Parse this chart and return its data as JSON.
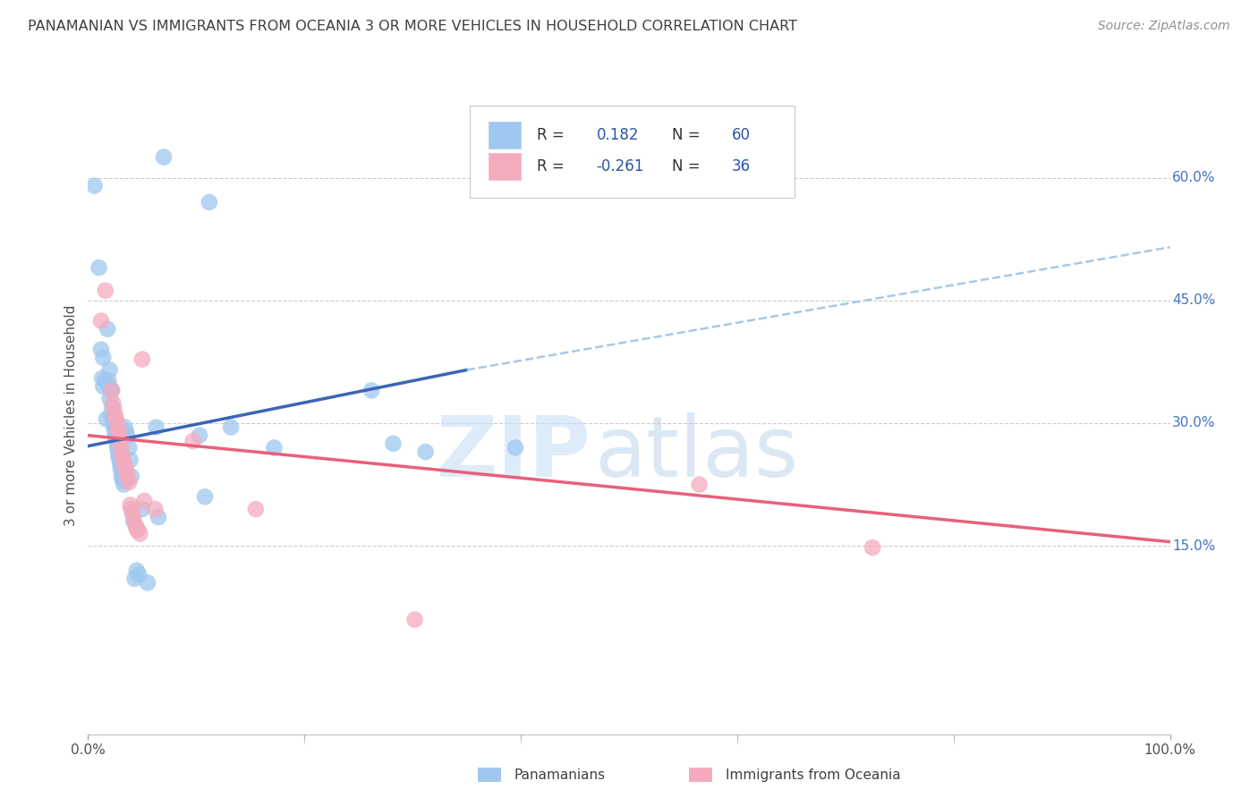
{
  "title": "PANAMANIAN VS IMMIGRANTS FROM OCEANIA 3 OR MORE VEHICLES IN HOUSEHOLD CORRELATION CHART",
  "source": "Source: ZipAtlas.com",
  "ylabel": "3 or more Vehicles in Household",
  "xlim": [
    0,
    1.0
  ],
  "ylim": [
    -0.08,
    0.7
  ],
  "xticks": [
    0.0,
    0.2,
    0.4,
    0.6,
    0.8,
    1.0
  ],
  "xticklabels": [
    "0.0%",
    "",
    "",
    "",
    "",
    "100.0%"
  ],
  "yticks_right": [
    0.15,
    0.3,
    0.45,
    0.6
  ],
  "yticklabels_right": [
    "15.0%",
    "30.0%",
    "45.0%",
    "60.0%"
  ],
  "color_blue": "#9EC8EF",
  "color_pink": "#F4ABBE",
  "color_blue_line": "#3A65B5",
  "color_pink_line": "#E8607A",
  "color_dashed_line": "#A8C8E8",
  "title_color": "#404040",
  "source_color": "#909090",
  "blue_scatter": [
    [
      0.006,
      0.59
    ],
    [
      0.01,
      0.49
    ],
    [
      0.012,
      0.39
    ],
    [
      0.014,
      0.38
    ],
    [
      0.013,
      0.355
    ],
    [
      0.014,
      0.345
    ],
    [
      0.016,
      0.352
    ],
    [
      0.018,
      0.415
    ],
    [
      0.017,
      0.305
    ],
    [
      0.019,
      0.352
    ],
    [
      0.02,
      0.365
    ],
    [
      0.019,
      0.345
    ],
    [
      0.021,
      0.342
    ],
    [
      0.02,
      0.33
    ],
    [
      0.022,
      0.34
    ],
    [
      0.022,
      0.32
    ],
    [
      0.021,
      0.31
    ],
    [
      0.023,
      0.305
    ],
    [
      0.024,
      0.3
    ],
    [
      0.024,
      0.295
    ],
    [
      0.025,
      0.29
    ],
    [
      0.025,
      0.285
    ],
    [
      0.026,
      0.28
    ],
    [
      0.027,
      0.275
    ],
    [
      0.027,
      0.27
    ],
    [
      0.028,
      0.265
    ],
    [
      0.028,
      0.26
    ],
    [
      0.029,
      0.255
    ],
    [
      0.03,
      0.25
    ],
    [
      0.03,
      0.245
    ],
    [
      0.031,
      0.24
    ],
    [
      0.031,
      0.235
    ],
    [
      0.032,
      0.23
    ],
    [
      0.033,
      0.225
    ],
    [
      0.034,
      0.295
    ],
    [
      0.035,
      0.29
    ],
    [
      0.036,
      0.285
    ],
    [
      0.038,
      0.27
    ],
    [
      0.039,
      0.255
    ],
    [
      0.04,
      0.235
    ],
    [
      0.041,
      0.19
    ],
    [
      0.042,
      0.18
    ],
    [
      0.043,
      0.11
    ],
    [
      0.063,
      0.295
    ],
    [
      0.065,
      0.185
    ],
    [
      0.07,
      0.625
    ],
    [
      0.103,
      0.285
    ],
    [
      0.108,
      0.21
    ],
    [
      0.112,
      0.57
    ],
    [
      0.132,
      0.295
    ],
    [
      0.172,
      0.27
    ],
    [
      0.262,
      0.34
    ],
    [
      0.282,
      0.275
    ],
    [
      0.312,
      0.265
    ],
    [
      0.395,
      0.27
    ],
    [
      0.045,
      0.12
    ],
    [
      0.047,
      0.115
    ],
    [
      0.05,
      0.195
    ],
    [
      0.055,
      0.105
    ]
  ],
  "pink_scatter": [
    [
      0.012,
      0.425
    ],
    [
      0.016,
      0.462
    ],
    [
      0.022,
      0.34
    ],
    [
      0.023,
      0.325
    ],
    [
      0.024,
      0.318
    ],
    [
      0.025,
      0.31
    ],
    [
      0.026,
      0.305
    ],
    [
      0.027,
      0.3
    ],
    [
      0.028,
      0.292
    ],
    [
      0.029,
      0.285
    ],
    [
      0.03,
      0.28
    ],
    [
      0.03,
      0.272
    ],
    [
      0.031,
      0.265
    ],
    [
      0.032,
      0.258
    ],
    [
      0.033,
      0.252
    ],
    [
      0.034,
      0.248
    ],
    [
      0.035,
      0.242
    ],
    [
      0.036,
      0.238
    ],
    [
      0.037,
      0.232
    ],
    [
      0.038,
      0.228
    ],
    [
      0.039,
      0.2
    ],
    [
      0.04,
      0.195
    ],
    [
      0.041,
      0.19
    ],
    [
      0.042,
      0.185
    ],
    [
      0.044,
      0.175
    ],
    [
      0.045,
      0.17
    ],
    [
      0.046,
      0.17
    ],
    [
      0.048,
      0.165
    ],
    [
      0.05,
      0.378
    ],
    [
      0.052,
      0.205
    ],
    [
      0.062,
      0.195
    ],
    [
      0.097,
      0.278
    ],
    [
      0.155,
      0.195
    ],
    [
      0.565,
      0.225
    ],
    [
      0.725,
      0.148
    ],
    [
      0.302,
      0.06
    ]
  ],
  "blue_line": [
    [
      0.0,
      0.272
    ],
    [
      0.35,
      0.365
    ]
  ],
  "pink_line": [
    [
      0.0,
      0.285
    ],
    [
      1.0,
      0.155
    ]
  ],
  "dashed_line": [
    [
      0.35,
      0.365
    ],
    [
      1.0,
      0.515
    ]
  ]
}
